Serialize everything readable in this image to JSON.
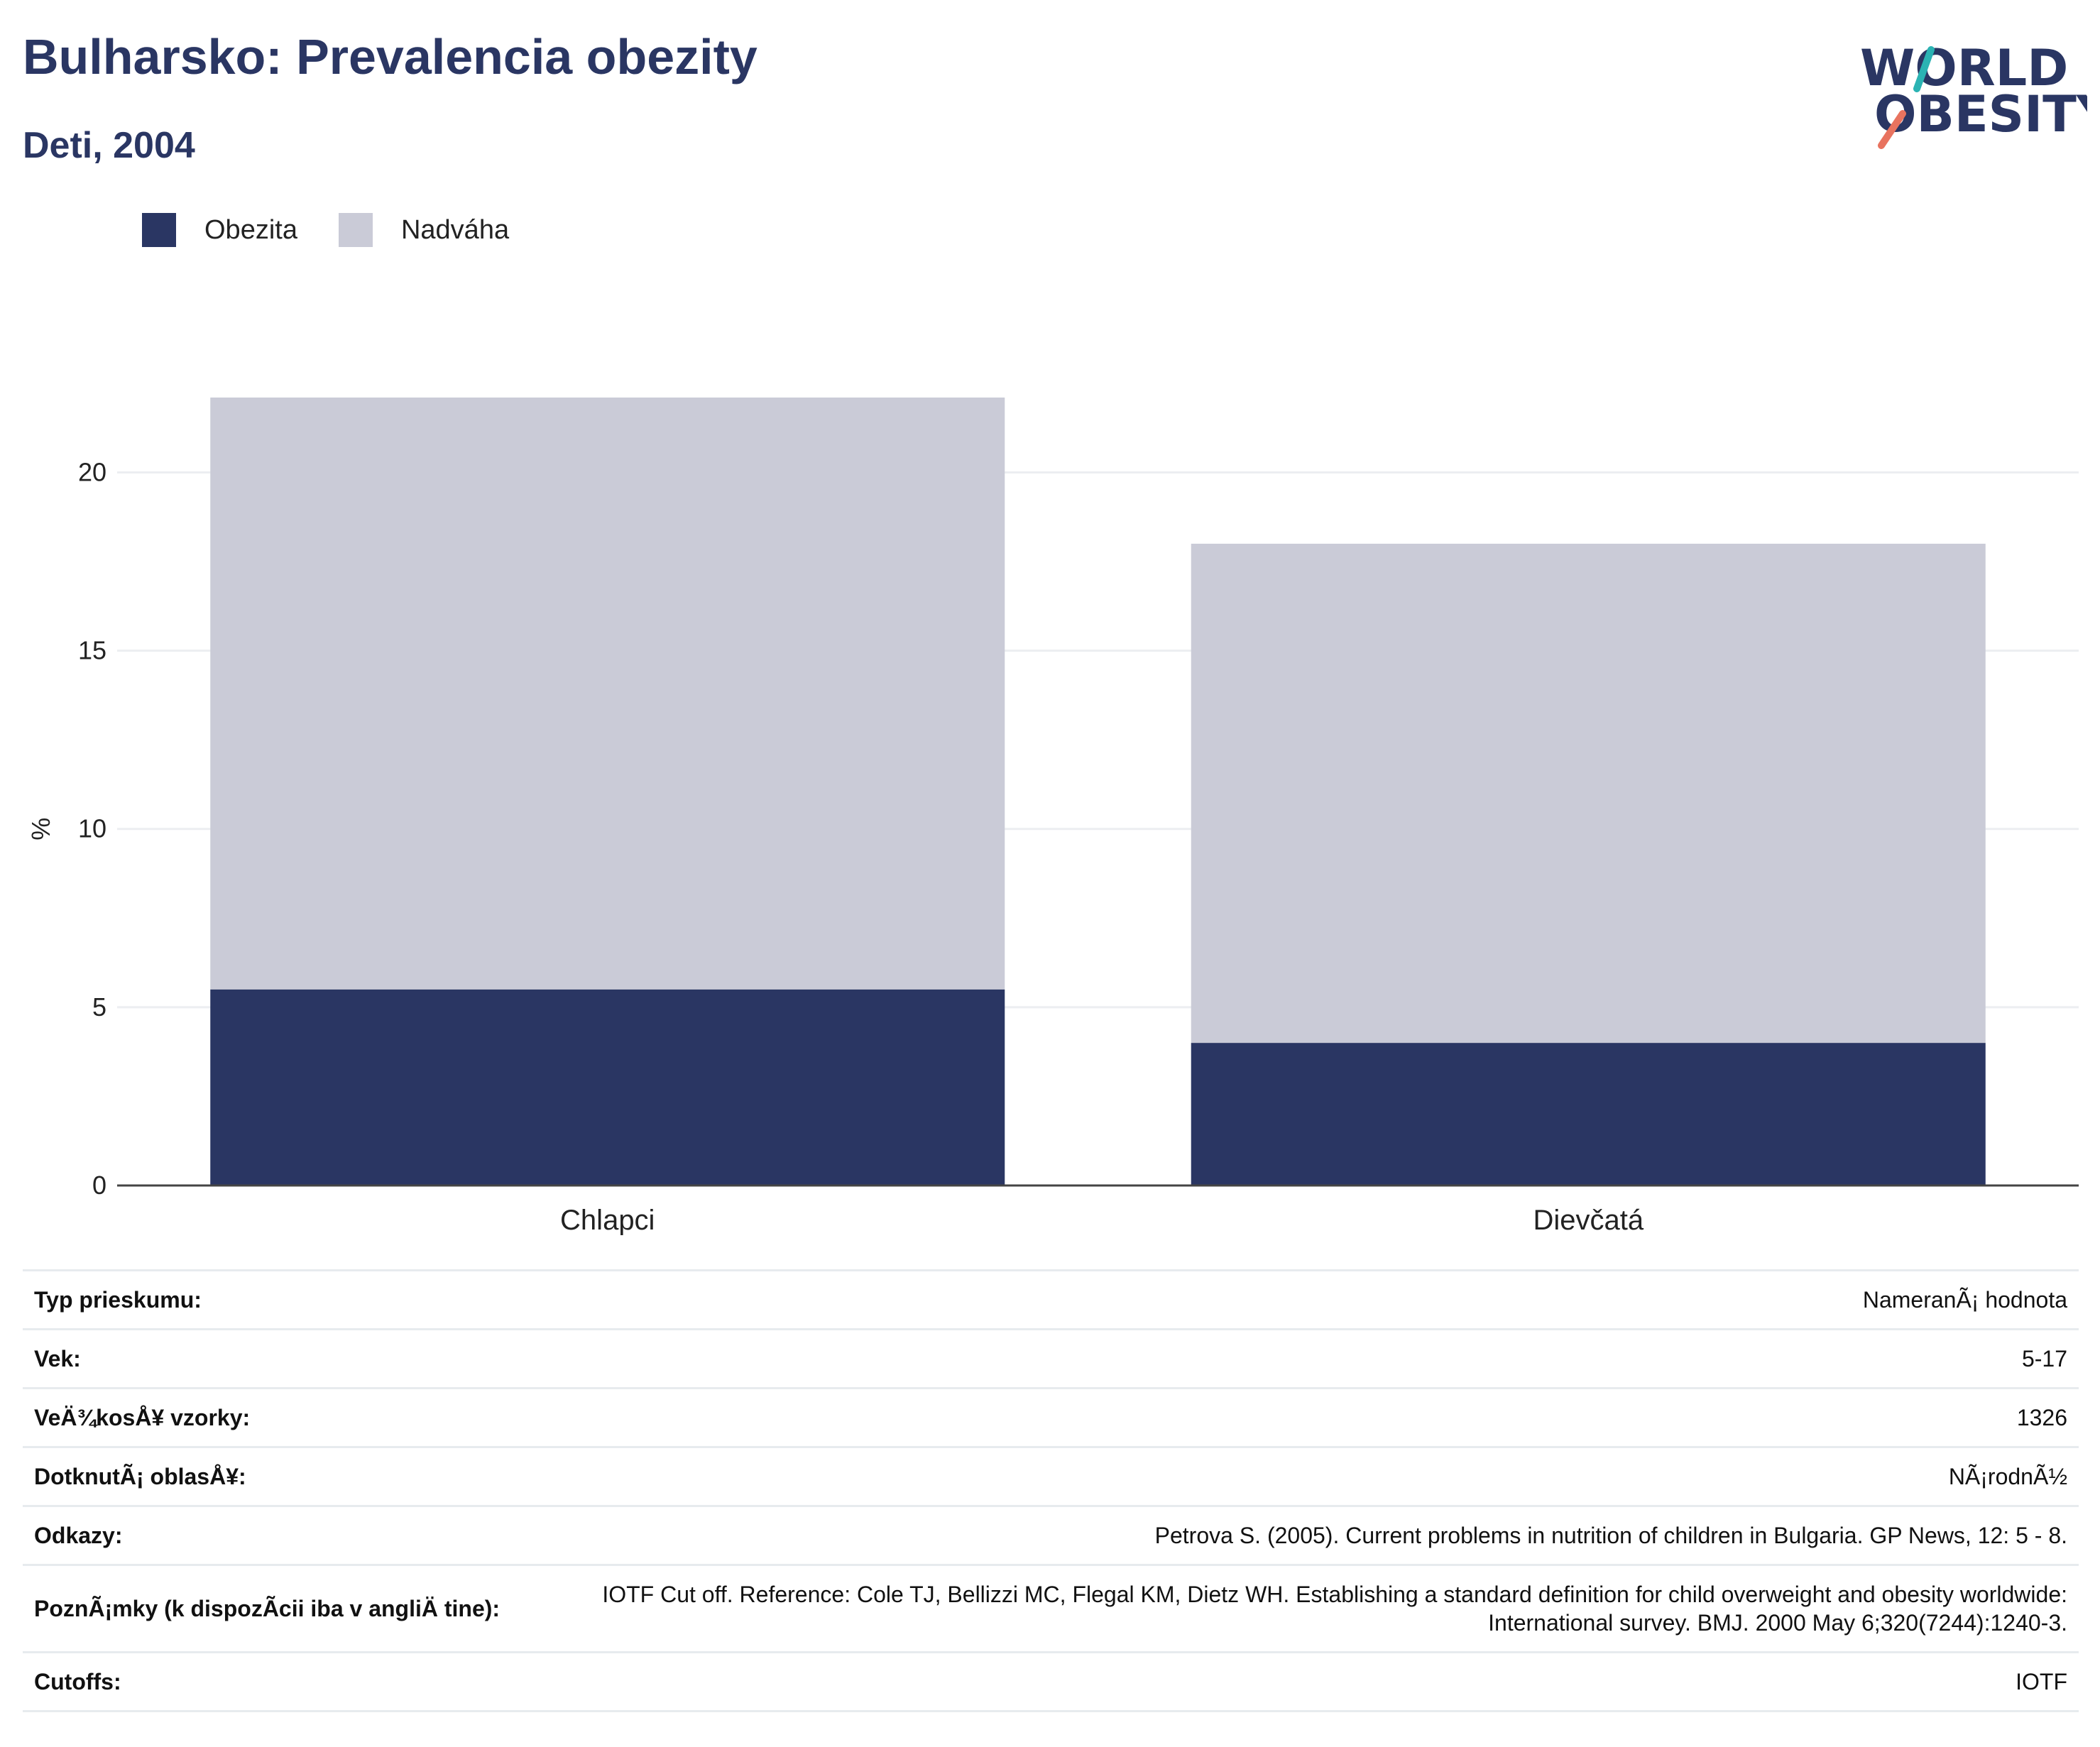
{
  "header": {
    "title": "Bulharsko: Prevalencia obezity",
    "subtitle": "Deti, 2004",
    "logo": {
      "line1": "WORLD",
      "line2": "OBESITY"
    }
  },
  "colors": {
    "obesity": "#2a3663",
    "overweight": "#cacbd7",
    "accent_teal": "#2bb3b3",
    "accent_red": "#e8735f"
  },
  "chart_data": {
    "type": "bar",
    "stacked": true,
    "categories": [
      "Chlapci",
      "Dievčatá"
    ],
    "series": [
      {
        "name": "Obezita",
        "values": [
          5.5,
          4.0
        ],
        "color": "#2a3663"
      },
      {
        "name": "Nadváha",
        "values": [
          16.6,
          14.0
        ],
        "color": "#cacbd7"
      }
    ],
    "ylabel": "%",
    "ylim": [
      0,
      22.1
    ],
    "yticks": [
      0,
      5,
      10,
      15,
      20
    ],
    "grid": true,
    "legend": "top-left"
  },
  "info": {
    "rows": [
      {
        "label": "Typ prieskumu:",
        "value": "NameranÃ¡ hodnota"
      },
      {
        "label": "Vek:",
        "value": "5-17"
      },
      {
        "label": "VeÄ¾kosÅ¥ vzorky:",
        "value": "1326"
      },
      {
        "label": "DotknutÃ¡ oblasÅ¥:",
        "value": "NÃ¡rodnÃ½"
      },
      {
        "label": "Odkazy:",
        "value": "Petrova S. (2005). Current problems in nutrition of children in Bulgaria. GP News, 12: 5 - 8."
      },
      {
        "label": "PoznÃ¡mky (k dispozÃcii iba v angliÄ tine):",
        "value": "IOTF Cut off. Reference: Cole TJ, Bellizzi MC, Flegal KM, Dietz WH. Establishing a standard definition for child overweight and obesity worldwide: International survey. BMJ. 2000 May 6;320(7244):1240-3."
      },
      {
        "label": "Cutoffs:",
        "value": "IOTF"
      }
    ]
  }
}
